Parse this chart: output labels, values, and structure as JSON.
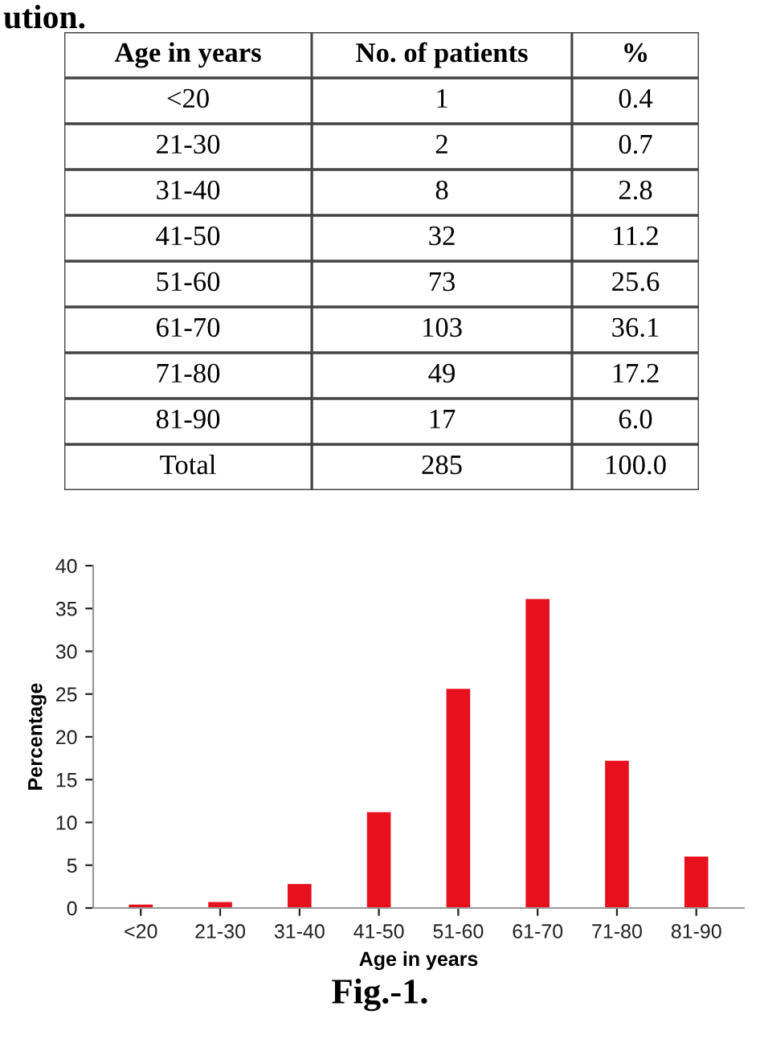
{
  "chart_data": [
    {
      "type": "other",
      "annotations": [
        "ution."
      ],
      "xlabel": "Age in years",
      "categories": [
        "<20",
        "21-30",
        "31-40",
        "41-50",
        "51-60",
        "61-70",
        "71-80",
        "81-90",
        "Total"
      ],
      "series": [
        {
          "name": "No. of patients",
          "values": [
            1,
            2,
            8,
            32,
            73,
            103,
            49,
            17,
            285
          ]
        },
        {
          "name": "%",
          "values": [
            0.4,
            0.7,
            2.8,
            11.2,
            25.6,
            36.1,
            17.2,
            6.0,
            100.0
          ],
          "value_labels": [
            "0.4",
            "0.7",
            "2.8",
            "11.2",
            "25.6",
            "36.1",
            "17.2",
            "6.0",
            "100.0"
          ]
        }
      ],
      "data_labels": true
    },
    {
      "type": "bar",
      "categories": [
        "<20",
        "21-30",
        "31-40",
        "41-50",
        "51-60",
        "61-70",
        "71-80",
        "81-90"
      ],
      "values": [
        0.4,
        0.7,
        2.8,
        11.2,
        25.6,
        36.1,
        17.2,
        6.0
      ],
      "color": "#e8101c",
      "ylim": [
        0,
        40
      ],
      "yticks": [
        0,
        5,
        10,
        15,
        20,
        25,
        30,
        35,
        40
      ],
      "xlabel": "Age in years",
      "ylabel": "Percentage",
      "annotations": [
        "Fig.-1."
      ],
      "grid": false
    }
  ]
}
